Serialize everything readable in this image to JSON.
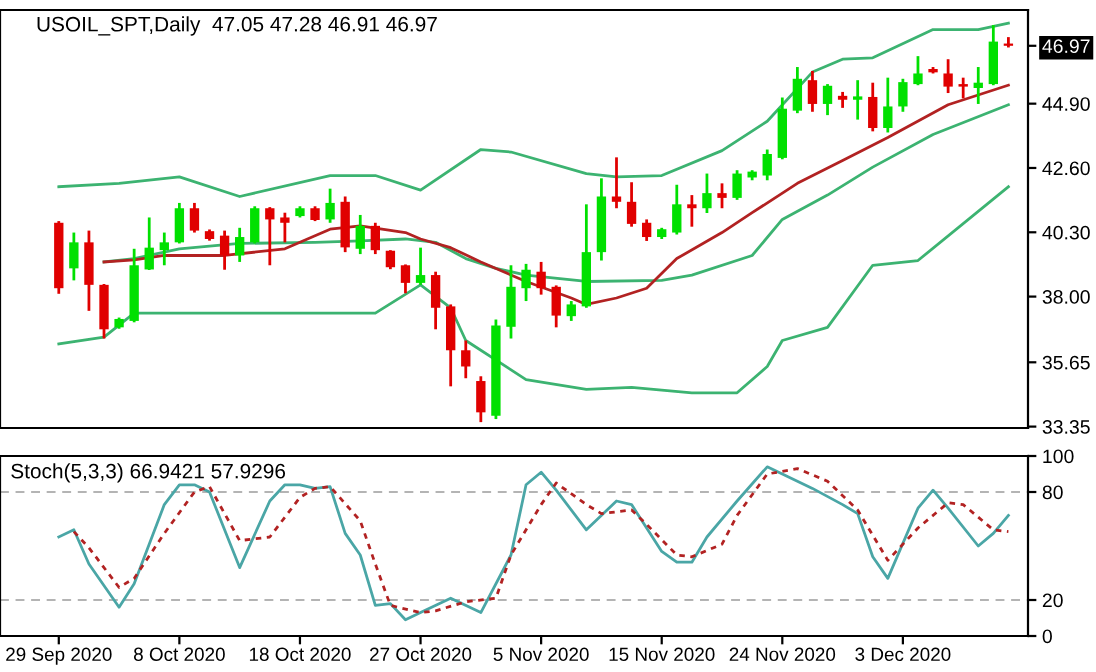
{
  "chart_data": [
    {
      "type": "candlestick",
      "title": "USOIL_SPT,Daily  47.05 47.28 46.91 46.97",
      "categories": [
        null,
        null,
        null,
        null,
        null,
        null,
        null,
        null,
        null,
        null,
        null,
        null,
        null,
        null,
        null,
        null,
        null,
        null,
        null,
        null,
        null,
        null,
        null,
        null,
        null,
        null,
        null,
        null,
        null,
        null,
        null,
        null,
        null,
        null,
        null,
        null,
        null,
        null,
        null,
        null,
        null,
        null,
        null,
        null,
        null,
        null,
        null,
        null,
        null,
        null,
        null,
        null,
        null,
        null,
        null,
        null,
        null,
        null,
        null,
        null,
        null,
        null,
        null,
        null
      ],
      "ohlc": [
        [
          40.64,
          40.7,
          38.1,
          38.3
        ],
        [
          39.01,
          40.29,
          38.58,
          39.94
        ],
        [
          39.94,
          40.36,
          37.49,
          38.42
        ],
        [
          38.42,
          38.45,
          36.5,
          36.83
        ],
        [
          36.9,
          37.25,
          36.85,
          37.2
        ],
        [
          37.13,
          39.71,
          37.08,
          39.12
        ],
        [
          38.97,
          40.83,
          38.95,
          39.75
        ],
        [
          39.66,
          40.29,
          39.12,
          39.94
        ],
        [
          39.94,
          41.35,
          39.9,
          41.16
        ],
        [
          41.16,
          41.35,
          40.29,
          40.36
        ],
        [
          40.34,
          40.4,
          40.0,
          40.06
        ],
        [
          40.18,
          40.36,
          38.96,
          39.47
        ],
        [
          39.47,
          40.46,
          39.24,
          40.13
        ],
        [
          39.94,
          41.23,
          39.9,
          41.16
        ],
        [
          41.16,
          41.2,
          39.12,
          40.76
        ],
        [
          40.83,
          41.0,
          39.94,
          40.64
        ],
        [
          40.88,
          41.23,
          40.83,
          41.16
        ],
        [
          41.16,
          41.23,
          40.7,
          40.74
        ],
        [
          40.76,
          41.86,
          40.64,
          41.35
        ],
        [
          41.39,
          41.58,
          39.59,
          39.76
        ],
        [
          39.71,
          40.92,
          39.52,
          40.53
        ],
        [
          40.53,
          40.64,
          39.52,
          39.66
        ],
        [
          39.64,
          39.66,
          38.98,
          39.05
        ],
        [
          39.12,
          39.15,
          38.12,
          38.49
        ],
        [
          38.49,
          39.75,
          38.42,
          38.77
        ],
        [
          38.77,
          38.89,
          36.83,
          37.6
        ],
        [
          37.65,
          37.72,
          34.79,
          36.08
        ],
        [
          36.08,
          36.43,
          35.08,
          35.5
        ],
        [
          34.98,
          35.15,
          33.51,
          33.86
        ],
        [
          33.74,
          37.18,
          33.62,
          36.97
        ],
        [
          36.92,
          39.12,
          36.5,
          38.35
        ],
        [
          38.3,
          39.17,
          37.84,
          38.96
        ],
        [
          38.89,
          39.24,
          38.07,
          38.3
        ],
        [
          38.35,
          38.4,
          36.9,
          37.32
        ],
        [
          37.3,
          37.84,
          37.13,
          37.72
        ],
        [
          37.65,
          41.3,
          37.6,
          39.59
        ],
        [
          39.59,
          42.23,
          39.29,
          41.58
        ],
        [
          41.58,
          42.98,
          41.16,
          41.39
        ],
        [
          41.39,
          42.09,
          40.5,
          40.6
        ],
        [
          40.64,
          40.76,
          39.99,
          40.13
        ],
        [
          40.13,
          40.46,
          40.06,
          40.41
        ],
        [
          40.29,
          42.0,
          40.22,
          41.3
        ],
        [
          41.3,
          41.63,
          40.5,
          41.16
        ],
        [
          41.16,
          42.4,
          40.99,
          41.7
        ],
        [
          41.7,
          42.05,
          41.16,
          41.53
        ],
        [
          41.53,
          42.52,
          41.46,
          42.4
        ],
        [
          42.26,
          42.52,
          42.16,
          42.47
        ],
        [
          42.33,
          43.26,
          42.16,
          43.1
        ],
        [
          42.96,
          45.12,
          42.91,
          44.72
        ],
        [
          44.65,
          46.21,
          44.56,
          45.79
        ],
        [
          45.74,
          46.07,
          44.61,
          44.89
        ],
        [
          44.89,
          45.6,
          44.49,
          45.54
        ],
        [
          45.18,
          45.32,
          44.75,
          45.04
        ],
        [
          45.04,
          45.74,
          44.33,
          45.16
        ],
        [
          45.14,
          45.65,
          43.91,
          44.03
        ],
        [
          44.03,
          45.83,
          43.87,
          44.8
        ],
        [
          44.8,
          45.79,
          44.61,
          45.67
        ],
        [
          45.6,
          46.6,
          45.56,
          45.98
        ],
        [
          46.14,
          46.21,
          45.98,
          46.02
        ],
        [
          45.98,
          46.49,
          45.28,
          45.51
        ],
        [
          45.6,
          45.83,
          45.09,
          45.51
        ],
        [
          45.46,
          46.21,
          44.89,
          45.65
        ],
        [
          45.6,
          47.71,
          45.56,
          47.12
        ],
        [
          47.05,
          47.28,
          46.91,
          46.97
        ]
      ],
      "colors": [
        "#e00000",
        "#00e000",
        "#e00000",
        "#e00000",
        "#00e000",
        "#00e000",
        "#00e000",
        "#00e000",
        "#00e000",
        "#e00000",
        "#e00000",
        "#e00000",
        "#00e000",
        "#00e000",
        "#e00000",
        "#e00000",
        "#00e000",
        "#e00000",
        "#00e000",
        "#e00000",
        "#00e000",
        "#e00000",
        "#e00000",
        "#e00000",
        "#00e000",
        "#e00000",
        "#e00000",
        "#e00000",
        "#e00000",
        "#00e000",
        "#00e000",
        "#00e000",
        "#e00000",
        "#e00000",
        "#00e000",
        "#00e000",
        "#00e000",
        "#e00000",
        "#e00000",
        "#e00000",
        "#00e000",
        "#00e000",
        "#e00000",
        "#00e000",
        "#e00000",
        "#00e000",
        "#00e000",
        "#00e000",
        "#00e000",
        "#00e000",
        "#e00000",
        "#00e000",
        "#e00000",
        "#00e000",
        "#e00000",
        "#00e000",
        "#00e000",
        "#00e000",
        "#e00000",
        "#e00000",
        "#e00000",
        "#00e000",
        "#00e000",
        "#e00000"
      ],
      "series": [
        {
          "type": "line",
          "color": "#3cb371",
          "values": [
            41.93,
            null,
            null,
            null,
            42.05,
            null,
            null,
            null,
            42.28,
            null,
            null,
            null,
            41.58,
            null,
            null,
            null,
            null,
            null,
            42.33,
            null,
            null,
            42.33,
            null,
            null,
            41.81,
            null,
            null,
            null,
            43.26,
            null,
            43.17,
            null,
            null,
            null,
            null,
            42.4,
            null,
            42.28,
            null,
            null,
            42.33,
            null,
            null,
            null,
            43.22,
            null,
            null,
            44.27,
            null,
            null,
            46.03,
            null,
            46.49,
            null,
            46.54,
            null,
            null,
            null,
            47.55,
            null,
            null,
            47.55,
            null,
            47.78
          ]
        },
        {
          "type": "line",
          "color": "#3cb371",
          "values": [
            null,
            null,
            null,
            39.24,
            null,
            39.36,
            null,
            null,
            39.71,
            null,
            null,
            null,
            39.9,
            null,
            null,
            null,
            null,
            39.94,
            null,
            null,
            39.99,
            null,
            null,
            40.06,
            null,
            39.94,
            null,
            39.36,
            null,
            39.01,
            null,
            38.77,
            null,
            null,
            null,
            38.54,
            null,
            null,
            null,
            null,
            38.58,
            null,
            38.77,
            null,
            null,
            null,
            39.47,
            null,
            40.76,
            null,
            null,
            41.63,
            null,
            null,
            42.63,
            null,
            null,
            null,
            43.8,
            null,
            null,
            null,
            null,
            44.86
          ]
        },
        {
          "type": "line",
          "color": "#3cb371",
          "values": [
            36.31,
            null,
            null,
            36.55,
            null,
            37.41,
            null,
            null,
            null,
            null,
            37.41,
            null,
            null,
            null,
            null,
            null,
            null,
            null,
            null,
            null,
            null,
            37.41,
            null,
            null,
            38.42,
            null,
            37.6,
            36.43,
            null,
            null,
            null,
            35.03,
            null,
            null,
            null,
            34.68,
            null,
            null,
            34.75,
            null,
            null,
            null,
            34.56,
            null,
            null,
            34.56,
            null,
            35.5,
            36.43,
            null,
            null,
            36.9,
            null,
            null,
            39.12,
            null,
            null,
            39.29,
            null,
            null,
            null,
            null,
            null,
            41.93
          ]
        },
        {
          "type": "line",
          "color": "#b22222",
          "values": [
            null,
            null,
            null,
            39.24,
            null,
            39.31,
            null,
            39.47,
            null,
            null,
            null,
            39.47,
            null,
            null,
            null,
            39.71,
            null,
            null,
            40.41,
            null,
            40.53,
            null,
            null,
            40.29,
            40.06,
            null,
            39.75,
            null,
            39.24,
            null,
            null,
            38.54,
            null,
            null,
            37.95,
            37.72,
            null,
            37.95,
            null,
            38.3,
            null,
            39.36,
            null,
            null,
            40.29,
            null,
            41.0,
            null,
            null,
            42.05,
            null,
            null,
            42.87,
            null,
            null,
            43.69,
            null,
            null,
            null,
            44.86,
            null,
            null,
            null,
            45.56
          ]
        }
      ],
      "ylim": [
        33.3,
        48.25
      ],
      "yticks": [
        {
          "value": 46.97,
          "label": "46.97"
        },
        {
          "value": 44.9,
          "label": "44.90"
        },
        {
          "value": 42.6,
          "label": "42.60"
        },
        {
          "value": 40.3,
          "label": "40.30"
        },
        {
          "value": 38,
          "label": "38.00"
        },
        35.65,
        33.35
      ],
      "tick_labels": "y",
      "grid": false,
      "legend": false
    },
    {
      "type": "line",
      "title": "Stoch(5,3,3) 66.9421 57.9296",
      "categories": [
        "29 Sep 2020",
        null,
        null,
        null,
        null,
        null,
        null,
        null,
        "8 Oct 2020",
        null,
        null,
        null,
        null,
        null,
        null,
        null,
        "18 Oct 2020",
        null,
        null,
        null,
        null,
        null,
        null,
        null,
        "27 Oct 2020",
        null,
        null,
        null,
        null,
        null,
        null,
        null,
        "5 Nov 2020",
        null,
        null,
        null,
        null,
        null,
        null,
        null,
        "15 Nov 2020",
        null,
        null,
        null,
        null,
        null,
        null,
        null,
        "24 Nov 2020",
        null,
        null,
        null,
        null,
        null,
        null,
        null,
        "3 Dec 2020",
        null,
        null,
        null,
        null,
        null,
        null,
        null
      ],
      "series": [
        {
          "color": "#4aa6a6",
          "line_style": "solid",
          "values": [
            55,
            59,
            40,
            null,
            16,
            29,
            null,
            73,
            84,
            84,
            80,
            null,
            38,
            null,
            75,
            84,
            84,
            82,
            83,
            57,
            45,
            17,
            18,
            9,
            13,
            null,
            21,
            null,
            13,
            null,
            45,
            84,
            91,
            81,
            null,
            59,
            null,
            75,
            73,
            null,
            47,
            41,
            41,
            55,
            null,
            75,
            null,
            94,
            90,
            null,
            82,
            null,
            73,
            68,
            44,
            32,
            null,
            71,
            81,
            71,
            null,
            50,
            57,
            67
          ]
        },
        {
          "color": "#b22222",
          "line_style": "dotted",
          "values": [
            null,
            58,
            49,
            null,
            27,
            32,
            null,
            57,
            null,
            80,
            83,
            null,
            53,
            null,
            55,
            null,
            77,
            82,
            83,
            null,
            64,
            40,
            17,
            null,
            13,
            14,
            null,
            19,
            null,
            21,
            45,
            null,
            73,
            85,
            null,
            73,
            68,
            null,
            70,
            62,
            null,
            45,
            44,
            null,
            51,
            67,
            null,
            90,
            null,
            93,
            null,
            86,
            null,
            70,
            null,
            42,
            null,
            60,
            null,
            74,
            73,
            null,
            59,
            58
          ]
        }
      ],
      "ylim": [
        0,
        100
      ],
      "yticks": [
        0,
        20,
        80,
        100
      ],
      "ref_lines": [
        {
          "axis": "y",
          "value": 20,
          "color": "#b4b4b4",
          "line_style": "dashed"
        },
        {
          "axis": "y",
          "value": 80,
          "color": "#b4b4b4",
          "line_style": "dashed"
        }
      ],
      "grid": false,
      "legend": false
    }
  ]
}
